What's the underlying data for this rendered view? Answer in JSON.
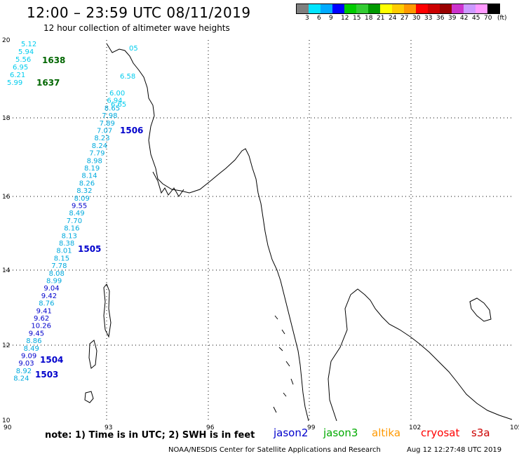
{
  "title": "12:00 – 23:59 UTC 08/11/2019",
  "subtitle": "12 hour collection of altimeter wave heights",
  "color_scale": {
    "labels": [
      "3",
      "6",
      "9",
      "12",
      "15",
      "18",
      "21",
      "24",
      "27",
      "30",
      "33",
      "36",
      "39",
      "42",
      "45",
      "70"
    ],
    "unit": "(ft)",
    "colors": [
      "#7f7f7f",
      "#00e5ff",
      "#00aaff",
      "#0000ff",
      "#00cc00",
      "#33cc33",
      "#009900",
      "#ffff00",
      "#ffcc00",
      "#ff9900",
      "#ff0000",
      "#cc0000",
      "#990000",
      "#cc33cc",
      "#cc99ff",
      "#ff99ff",
      "#000000"
    ]
  },
  "axes": {
    "lon_labels": [
      "90",
      "93",
      "96",
      "99",
      "102",
      "105"
    ],
    "lat_labels": [
      "20",
      "18",
      "16",
      "14",
      "12",
      "10"
    ]
  },
  "passes": {
    "p1638": "1638",
    "p1637": "1637",
    "p1506": "1506",
    "p1505": "1505",
    "p1504": "1504",
    "p1503": "1503"
  },
  "pass_colors": {
    "jason2": "#0000cc",
    "jason3": "#006600",
    "light": "#00ccee",
    "mid": "#00aadd",
    "dark": "#0000cc"
  },
  "wave_values": {
    "left_track": [
      "5.12",
      "5.94",
      "5.56",
      "6.95",
      "6.21",
      "5.99"
    ],
    "main_track": [
      "6.00",
      "6.94",
      "8.65",
      "7.98",
      "7.89",
      "7.07",
      "8.23",
      "8.24",
      "7.79",
      "8.98",
      "8.19",
      "8.14",
      "8.26",
      "8.32",
      "8.09",
      "9.55",
      "8.49",
      "7.70",
      "8.16",
      "8.13",
      "8.38",
      "8.01",
      "8.15",
      "7.78",
      "8.08",
      "8.99",
      "9.04",
      "9.42",
      "8.76",
      "9.41",
      "9.62",
      "10.26",
      "9.45",
      "8.86",
      "8.49",
      "9.09",
      "9.03",
      "8.92",
      "8.24"
    ],
    "top_track": [
      "05",
      "6.58",
      "6.65"
    ]
  },
  "footer": {
    "note": "note:  1) Time is in UTC;  2) SWH is in feet",
    "credit": "NOAA/NESDIS Center for Satellite Applications and Research",
    "timestamp": "Aug 12 12:27:48 UTC 2019"
  },
  "legend": [
    {
      "name": "jason2",
      "color": "#0000cc"
    },
    {
      "name": "jason3",
      "color": "#00aa00"
    },
    {
      "name": "altika",
      "color": "#ff9900"
    },
    {
      "name": "cryosat",
      "color": "#ff0000"
    },
    {
      "name": "s3a",
      "color": "#cc0000"
    }
  ]
}
